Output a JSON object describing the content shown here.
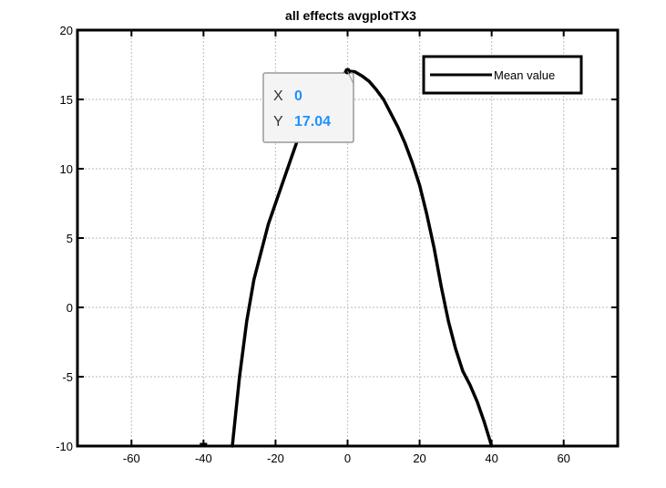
{
  "chart_data": {
    "type": "line",
    "title": "all effects avgplotTX3",
    "xlabel": "",
    "ylabel": "",
    "xlim": [
      -75,
      75
    ],
    "ylim": [
      -10,
      20
    ],
    "xticks": [
      -60,
      -40,
      -20,
      0,
      20,
      40,
      60
    ],
    "yticks": [
      -10,
      -5,
      0,
      5,
      10,
      15,
      20
    ],
    "grid": true,
    "legend_location": "top-right",
    "series": [
      {
        "name": "Mean value",
        "color": "#000000",
        "x": [
          -32,
          -30,
          -28,
          -26,
          -24,
          -22,
          -20,
          -18,
          -16,
          -14,
          -12,
          -10,
          -8,
          -6,
          -4,
          -2,
          0,
          2,
          4,
          6,
          8,
          10,
          12,
          14,
          16,
          18,
          20,
          22,
          24,
          26,
          28,
          30,
          32,
          34,
          36,
          38,
          40
        ],
        "y": [
          -10,
          -5,
          -1,
          2,
          4,
          6,
          7.5,
          9,
          10.5,
          12,
          13,
          14,
          14.8,
          15.5,
          16.2,
          16.7,
          17.04,
          17,
          16.7,
          16.3,
          15.7,
          15,
          14,
          13,
          11.8,
          10.4,
          8.8,
          6.7,
          4.3,
          1.5,
          -1,
          -3,
          -4.6,
          -5.6,
          -6.8,
          -8.3,
          -10
        ]
      }
    ],
    "datatip": {
      "x_label": "X",
      "x_value": "0",
      "y_label": "Y",
      "y_value": "17.04",
      "point": [
        0,
        17.04
      ]
    },
    "extra_marks": [
      {
        "x": -40,
        "y": -10,
        "color": "#000000"
      }
    ],
    "colors": {
      "grid": "#c8c8c8",
      "axes": "#000000",
      "datatip_bg": "#f4f4f4",
      "datatip_value": "#1e90ff"
    }
  }
}
